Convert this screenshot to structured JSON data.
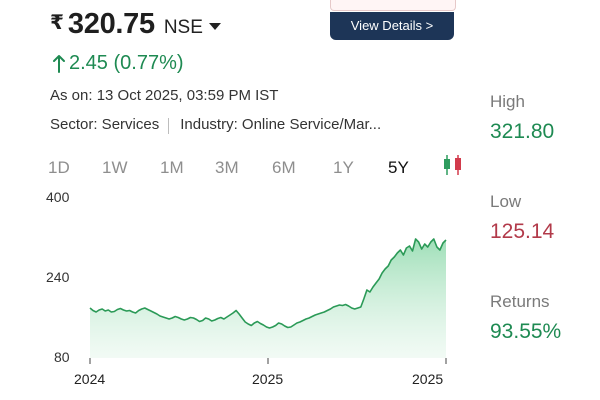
{
  "banner": {
    "view_details_label": "View Details >"
  },
  "quote": {
    "currency_symbol": "₹",
    "price": "320.75",
    "exchange": "NSE",
    "change": "2.45 (0.77%)",
    "as_on": "As on: 13 Oct 2025, 03:59 PM IST",
    "sector": "Sector: Services",
    "industry": "Industry: Online Service/Mar..."
  },
  "tabs": [
    {
      "label": "1D",
      "active": false
    },
    {
      "label": "1W",
      "active": false
    },
    {
      "label": "1M",
      "active": false
    },
    {
      "label": "3M",
      "active": false
    },
    {
      "label": "6M",
      "active": false
    },
    {
      "label": "1Y",
      "active": false
    },
    {
      "label": "5Y",
      "active": true
    }
  ],
  "stats": {
    "high_label": "High",
    "high_value": "321.80",
    "low_label": "Low",
    "low_value": "125.14",
    "returns_label": "Returns",
    "returns_value": "93.55%"
  },
  "colors": {
    "up": "#1e8a52",
    "down": "#b23a4a",
    "button": "#1d3557"
  },
  "chart_data": {
    "type": "area",
    "y_ticks": [
      400,
      240,
      80
    ],
    "x_ticks": [
      "2024",
      "2025",
      "2025"
    ],
    "ylim": [
      80,
      400
    ],
    "series": [
      {
        "values": [
          180,
          175,
          172,
          176,
          178,
          174,
          176,
          172,
          173,
          177,
          179,
          176,
          174,
          175,
          172,
          170,
          175,
          178,
          180,
          177,
          174,
          171,
          168,
          164,
          162,
          160,
          158,
          160,
          163,
          161,
          158,
          156,
          158,
          161,
          160,
          157,
          153,
          155,
          160,
          158,
          154,
          156,
          159,
          161,
          158,
          162,
          166,
          170,
          175,
          168,
          160,
          152,
          148,
          145,
          150,
          153,
          149,
          146,
          142,
          140,
          142,
          145,
          150,
          148,
          144,
          141,
          142,
          146,
          150,
          152,
          155,
          158,
          160,
          163,
          166,
          168,
          170,
          172,
          175,
          178,
          182,
          184,
          186,
          185,
          187,
          184,
          180,
          178,
          180,
          182,
          198,
          216,
          212,
          222,
          230,
          238,
          250,
          258,
          264,
          276,
          282,
          290,
          296,
          286,
          300,
          304,
          294,
          318,
          312,
          298,
          308,
          302,
          312,
          318,
          302,
          296,
          310,
          316
        ]
      }
    ]
  }
}
